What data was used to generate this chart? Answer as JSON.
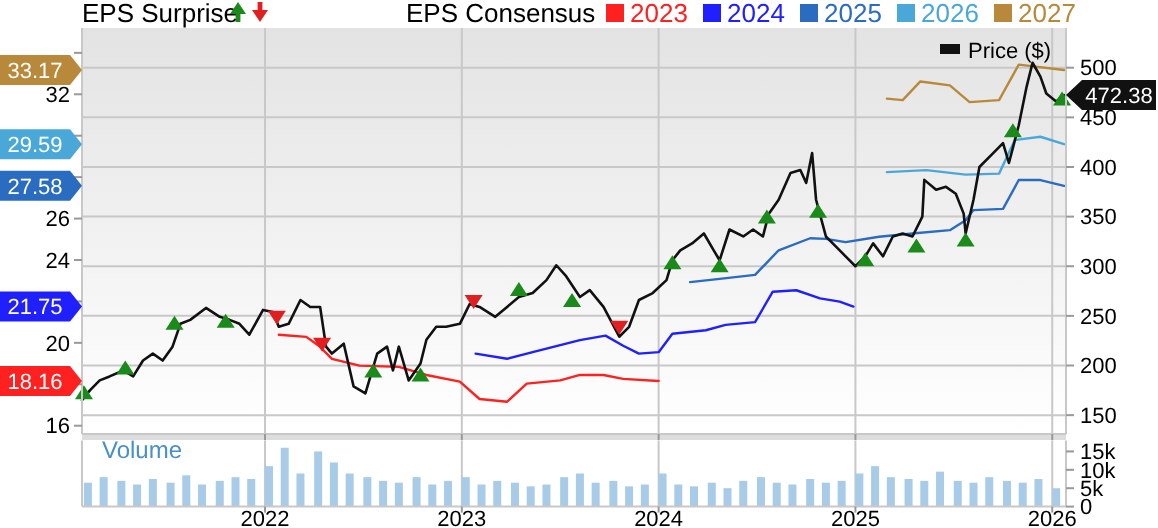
{
  "chart_data": [
    {
      "type": "line",
      "title": "EPS Surprise",
      "legend_title": "EPS Consensus",
      "legend": "top",
      "grid": true,
      "tick_labels": "y",
      "annotations": [
        "18.16",
        "21.75",
        "27.58",
        "29.59",
        "33.17"
      ],
      "xlim": [
        2021.07,
        2026.07
      ],
      "xticks": [
        2022,
        2023,
        2024,
        2025,
        2026
      ],
      "ylim": [
        15.6,
        35.2
      ],
      "yticks": [
        16,
        {
          "value": 18,
          "label": null
        },
        20,
        {
          "value": 22,
          "label": null
        },
        24,
        26,
        {
          "value": 28,
          "label": null
        },
        {
          "value": 30,
          "label": null
        },
        32,
        {
          "value": 34,
          "label": null
        }
      ],
      "y2lim": [
        131,
        540
      ],
      "y2ticks": [
        150,
        200,
        250,
        300,
        350,
        400,
        450,
        500
      ],
      "series": [
        {
          "name": "2023",
          "color": "#ff2020",
          "x": [
            2022.07,
            2022.21,
            2022.28,
            2022.34,
            2022.48,
            2022.68,
            2022.82,
            2022.99,
            2023.09,
            2023.23,
            2023.33,
            2023.5,
            2023.6,
            2023.72,
            2023.82,
            2024.0
          ],
          "values": [
            20.39,
            20.29,
            19.81,
            19.23,
            18.9,
            18.84,
            18.45,
            18.13,
            17.29,
            17.16,
            18.03,
            18.19,
            18.45,
            18.45,
            18.26,
            18.16
          ]
        },
        {
          "name": "2024",
          "color": "#2020ff",
          "x": [
            2023.07,
            2023.23,
            2023.36,
            2023.6,
            2023.73,
            2023.82,
            2023.9,
            2024.0,
            2024.07,
            2024.24,
            2024.34,
            2024.49,
            2024.58,
            2024.7,
            2024.82,
            2024.92,
            2024.99
          ],
          "values": [
            19.48,
            19.23,
            19.55,
            20.13,
            20.35,
            19.86,
            19.48,
            19.55,
            20.44,
            20.61,
            20.87,
            21.0,
            22.47,
            22.54,
            22.15,
            21.99,
            21.75
          ]
        },
        {
          "name": "2025",
          "color": "#2a6cc0",
          "x": [
            2024.16,
            2024.31,
            2024.49,
            2024.61,
            2024.77,
            2024.85,
            2024.95,
            2025.12,
            2025.29,
            2025.48,
            2025.56,
            2025.6,
            2025.75,
            2025.83,
            2025.94,
            2026.06
          ],
          "values": [
            22.93,
            23.09,
            23.28,
            24.47,
            25.05,
            25.02,
            24.86,
            25.12,
            25.28,
            25.44,
            25.92,
            26.41,
            26.47,
            27.86,
            27.86,
            27.58
          ]
        },
        {
          "name": "2026",
          "color": "#4aa8d8",
          "x": [
            2025.16,
            2025.36,
            2025.56,
            2025.73,
            2025.81,
            2025.94,
            2026.06
          ],
          "values": [
            28.24,
            28.34,
            28.12,
            28.17,
            29.79,
            29.95,
            29.59
          ]
        },
        {
          "name": "2027",
          "color": "#b8893a",
          "x": [
            2025.16,
            2025.24,
            2025.33,
            2025.48,
            2025.58,
            2025.73,
            2025.83,
            2026.06
          ],
          "values": [
            31.79,
            31.72,
            32.62,
            32.43,
            31.62,
            31.72,
            33.43,
            33.17
          ]
        },
        {
          "name": "Price ($)",
          "color": "#111111",
          "axis": "y2",
          "x": [
            2021.07,
            2021.11,
            2021.16,
            2021.21,
            2021.28,
            2021.33,
            2021.38,
            2021.43,
            2021.48,
            2021.53,
            2021.57,
            2021.62,
            2021.7,
            2021.77,
            2021.82,
            2021.87,
            2021.92,
            2021.99,
            2022.04,
            2022.07,
            2022.12,
            2022.18,
            2022.23,
            2022.28,
            2022.31,
            2022.34,
            2022.4,
            2022.45,
            2022.51,
            2022.57,
            2022.62,
            2022.65,
            2022.68,
            2022.73,
            2022.79,
            2022.82,
            2022.87,
            2022.92,
            2022.99,
            2023.04,
            2023.09,
            2023.17,
            2023.23,
            2023.29,
            2023.36,
            2023.43,
            2023.48,
            2023.53,
            2023.6,
            2023.65,
            2023.72,
            2023.8,
            2023.85,
            2023.9,
            2023.97,
            2024.04,
            2024.07,
            2024.11,
            2024.17,
            2024.23,
            2024.28,
            2024.31,
            2024.36,
            2024.43,
            2024.48,
            2024.53,
            2024.56,
            2024.61,
            2024.67,
            2024.72,
            2024.75,
            2024.78,
            2024.8,
            2024.85,
            2024.9,
            2024.95,
            2025.0,
            2025.05,
            2025.09,
            2025.14,
            2025.19,
            2025.24,
            2025.29,
            2025.34,
            2025.35,
            2025.41,
            2025.46,
            2025.51,
            2025.55,
            2025.56,
            2025.6,
            2025.63,
            2025.7,
            2025.75,
            2025.78,
            2025.83,
            2025.87,
            2025.9,
            2025.94,
            2025.97,
            2026.02,
            2026.06
          ],
          "values": [
            165,
            175,
            185,
            189,
            195,
            189,
            205,
            212,
            205,
            219,
            242,
            246,
            258,
            249,
            246,
            242,
            231,
            256,
            254,
            239,
            242,
            266,
            259,
            259,
            219,
            212,
            222,
            179,
            172,
            212,
            219,
            195,
            219,
            185,
            202,
            226,
            239,
            239,
            242,
            262,
            259,
            249,
            259,
            269,
            273,
            286,
            301,
            290,
            269,
            276,
            259,
            229,
            239,
            266,
            273,
            286,
            306,
            316,
            323,
            333,
            316,
            306,
            337,
            330,
            337,
            330,
            353,
            367,
            394,
            397,
            384,
            414,
            367,
            330,
            320,
            310,
            300,
            310,
            323,
            310,
            330,
            333,
            330,
            350,
            387,
            377,
            380,
            373,
            353,
            333,
            367,
            400,
            414,
            424,
            404,
            442,
            481,
            505,
            491,
            474,
            466,
            472.38
          ],
          "value_labels": [
            null,
            null,
            null,
            null,
            null,
            null,
            null,
            null,
            null,
            null,
            null,
            null,
            null,
            null,
            null,
            null,
            null,
            null,
            null,
            null,
            null,
            null,
            null,
            null,
            null,
            null,
            null,
            null,
            null,
            null,
            null,
            null,
            null,
            null,
            null,
            null,
            null,
            null,
            null,
            null,
            null,
            null,
            null,
            null,
            null,
            null,
            null,
            null,
            null,
            null,
            null,
            null,
            null,
            null,
            null,
            null,
            null,
            null,
            null,
            null,
            null,
            null,
            null,
            null,
            null,
            null,
            null,
            null,
            null,
            null,
            null,
            null,
            null,
            null,
            null,
            null,
            null,
            null,
            null,
            null,
            null,
            null,
            null,
            null,
            null,
            null,
            null,
            null,
            null,
            null,
            null,
            null,
            null,
            null,
            null,
            null,
            null,
            null,
            null,
            null,
            null,
            "472.38"
          ]
        },
        {
          "type": "scatter",
          "color": "#1a8a1a",
          "axis": "y2",
          "marker": "triangle",
          "x": [
            2021.08,
            2021.29,
            2021.54,
            2021.8,
            2022.55,
            2022.79,
            2023.29,
            2023.56,
            2024.07,
            2024.31,
            2024.55,
            2024.81,
            2025.05,
            2025.31,
            2025.56,
            2025.8,
            2026.05
          ],
          "values": [
            172,
            197,
            242,
            244,
            194,
            190,
            276,
            265,
            303,
            300,
            349,
            355,
            306,
            320,
            326,
            436,
            468
          ]
        },
        {
          "type": "scatter",
          "color": "#e02020",
          "axis": "y2",
          "x": [
            2022.06,
            2022.29,
            2023.06,
            2023.8
          ],
          "values": [
            249,
            222,
            265,
            239
          ]
        }
      ]
    },
    {
      "type": "bar",
      "title": "Volume",
      "grid": "x",
      "color": "#a8cbe8",
      "xlim": [
        2021.07,
        2026.07
      ],
      "xticks": [
        2022,
        2023,
        2024,
        2025,
        2026
      ],
      "ylim": [
        0,
        18000
      ],
      "yticks": [
        0,
        {
          "value": 5000,
          "label": "5k"
        },
        {
          "value": 10000,
          "label": "10k"
        },
        {
          "value": 15000,
          "label": "15k"
        }
      ],
      "x": [
        2021.1,
        2021.18,
        2021.27,
        2021.35,
        2021.43,
        2021.52,
        2021.6,
        2021.68,
        2021.77,
        2021.85,
        2021.93,
        2022.02,
        2022.1,
        2022.18,
        2022.27,
        2022.35,
        2022.43,
        2022.52,
        2022.6,
        2022.68,
        2022.77,
        2022.85,
        2022.93,
        2023.02,
        2023.1,
        2023.18,
        2023.27,
        2023.35,
        2023.43,
        2023.52,
        2023.6,
        2023.68,
        2023.77,
        2023.85,
        2023.93,
        2024.02,
        2024.1,
        2024.18,
        2024.27,
        2024.35,
        2024.43,
        2024.52,
        2024.6,
        2024.68,
        2024.77,
        2024.85,
        2024.93,
        2025.02,
        2025.1,
        2025.18,
        2025.27,
        2025.35,
        2025.43,
        2025.52,
        2025.6,
        2025.68,
        2025.77,
        2025.85,
        2025.93,
        2026.02
      ],
      "values": [
        6500,
        8000,
        7000,
        6000,
        7500,
        6500,
        8500,
        6000,
        7000,
        8000,
        7500,
        11000,
        16000,
        9000,
        15000,
        12000,
        9000,
        8000,
        7000,
        6500,
        8000,
        6000,
        7000,
        8000,
        6000,
        7000,
        6500,
        5500,
        6000,
        8000,
        9000,
        6500,
        7000,
        5500,
        6000,
        9000,
        6000,
        5500,
        6500,
        5000,
        7000,
        8000,
        6500,
        6000,
        7500,
        6500,
        7000,
        9000,
        11000,
        8000,
        7500,
        7000,
        9500,
        7000,
        6500,
        8000,
        7000,
        6500,
        7500,
        5000
      ]
    }
  ]
}
